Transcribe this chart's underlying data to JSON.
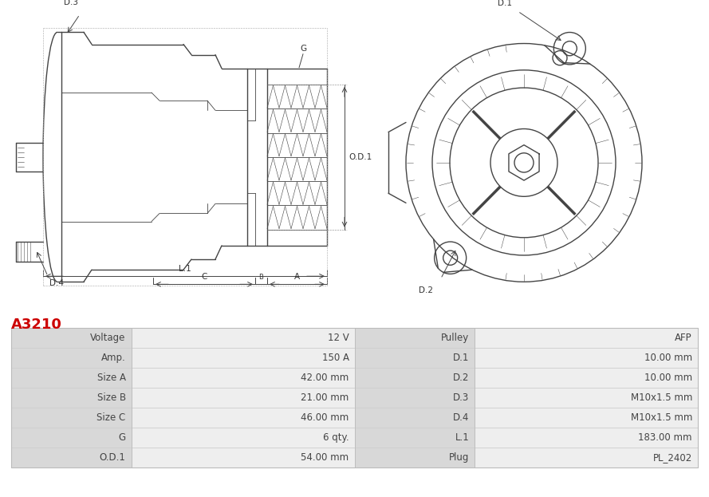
{
  "title": "A3210",
  "title_color": "#cc0000",
  "bg_color": "#ffffff",
  "table_rows": [
    [
      "Voltage",
      "12 V",
      "Pulley",
      "AFP"
    ],
    [
      "Amp.",
      "150 A",
      "D.1",
      "10.00 mm"
    ],
    [
      "Size A",
      "42.00 mm",
      "D.2",
      "10.00 mm"
    ],
    [
      "Size B",
      "21.00 mm",
      "D.3",
      "M10x1.5 mm"
    ],
    [
      "Size C",
      "46.00 mm",
      "D.4",
      "M10x1.5 mm"
    ],
    [
      "G",
      "6 qty.",
      "L.1",
      "183.00 mm"
    ],
    [
      "O.D.1",
      "54.00 mm",
      "Plug",
      "PL_2402"
    ]
  ],
  "table_text_color": "#444444",
  "font_size_table": 8.5,
  "line_color": "#444444",
  "bg_color_label": "#d8d8d8",
  "bg_color_value": "#eeeeee",
  "diagram_bg": "#ffffff"
}
